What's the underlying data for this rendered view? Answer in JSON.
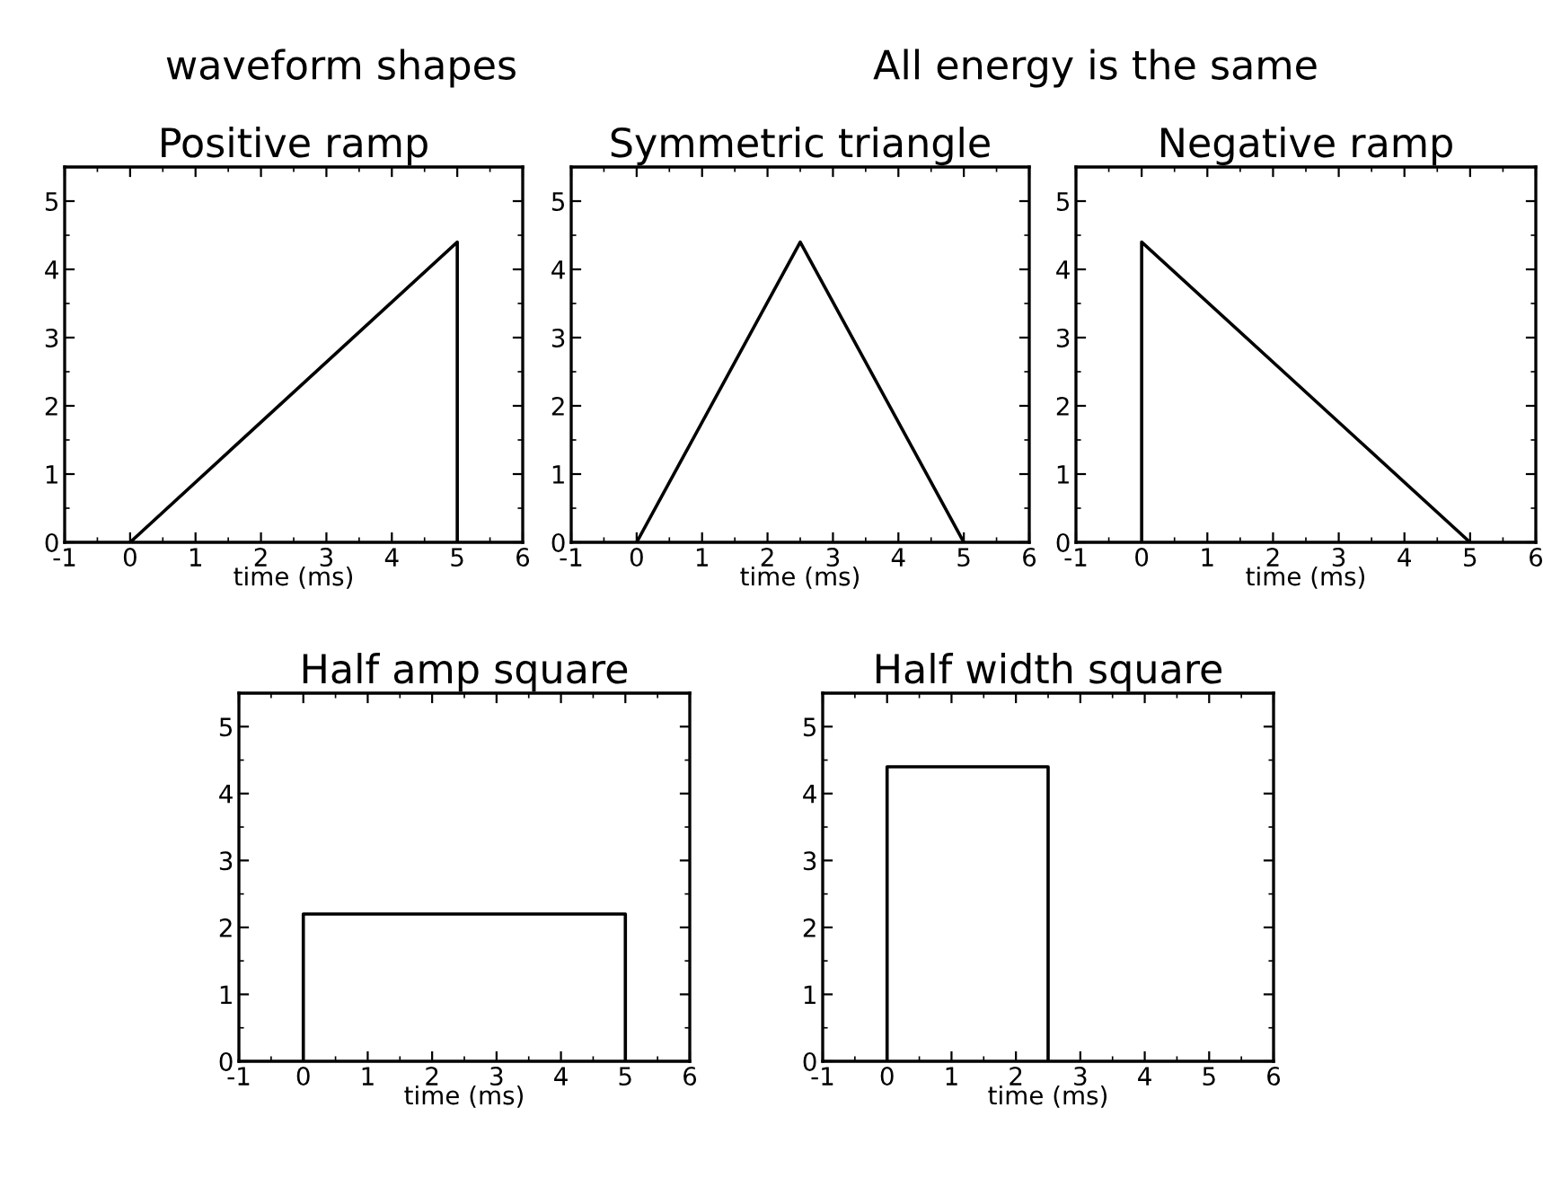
{
  "chart_data": [
    {
      "type": "line",
      "title": "Positive ramp",
      "xlabel": "time (ms)",
      "annotations": [
        "waveform shapes"
      ],
      "x": [
        0,
        5,
        5
      ],
      "series": [
        {
          "color": "#000000",
          "values": [
            0,
            4.4,
            0
          ]
        }
      ],
      "xlim": [
        -1,
        6
      ],
      "ylim": [
        0,
        5.5
      ],
      "xticks": [
        -1,
        0,
        1,
        2,
        3,
        4,
        5,
        6
      ],
      "yticks": [
        0,
        1,
        2,
        3,
        4,
        5
      ],
      "grid": false,
      "legend": false
    },
    {
      "type": "line",
      "title": "Symmetric triangle",
      "xlabel": "time (ms)",
      "x": [
        0,
        2.5,
        5
      ],
      "series": [
        {
          "color": "#000000",
          "values": [
            0,
            4.4,
            0
          ]
        }
      ],
      "xlim": [
        -1,
        6
      ],
      "ylim": [
        0,
        5.5
      ],
      "xticks": [
        -1,
        0,
        1,
        2,
        3,
        4,
        5,
        6
      ],
      "yticks": [
        0,
        1,
        2,
        3,
        4,
        5
      ],
      "grid": false,
      "legend": false
    },
    {
      "type": "line",
      "title": "Negative ramp",
      "xlabel": "time (ms)",
      "annotations": [
        "All energy is the same"
      ],
      "x": [
        0,
        0,
        5
      ],
      "series": [
        {
          "color": "#000000",
          "values": [
            0,
            4.4,
            0
          ]
        }
      ],
      "xlim": [
        -1,
        6
      ],
      "ylim": [
        0,
        5.5
      ],
      "xticks": [
        -1,
        0,
        1,
        2,
        3,
        4,
        5,
        6
      ],
      "yticks": [
        0,
        1,
        2,
        3,
        4,
        5
      ],
      "grid": false,
      "legend": false
    },
    {
      "type": "line",
      "title": "Half amp square",
      "xlabel": "time (ms)",
      "x": [
        0,
        0,
        5,
        5
      ],
      "series": [
        {
          "color": "#000000",
          "values": [
            0,
            2.2,
            2.2,
            0
          ]
        }
      ],
      "xlim": [
        -1,
        6
      ],
      "ylim": [
        0,
        5.5
      ],
      "xticks": [
        -1,
        0,
        1,
        2,
        3,
        4,
        5,
        6
      ],
      "yticks": [
        0,
        1,
        2,
        3,
        4,
        5
      ],
      "grid": false,
      "legend": false
    },
    {
      "type": "line",
      "title": "Half width square",
      "xlabel": "time (ms)",
      "x": [
        0,
        0,
        2.5,
        2.5
      ],
      "series": [
        {
          "color": "#000000",
          "values": [
            0,
            4.4,
            4.4,
            0
          ]
        }
      ],
      "xlim": [
        -1,
        6
      ],
      "ylim": [
        0,
        5.5
      ],
      "xticks": [
        -1,
        0,
        1,
        2,
        3,
        4,
        5,
        6
      ],
      "yticks": [
        0,
        1,
        2,
        3,
        4,
        5
      ],
      "grid": false,
      "legend": false
    }
  ]
}
